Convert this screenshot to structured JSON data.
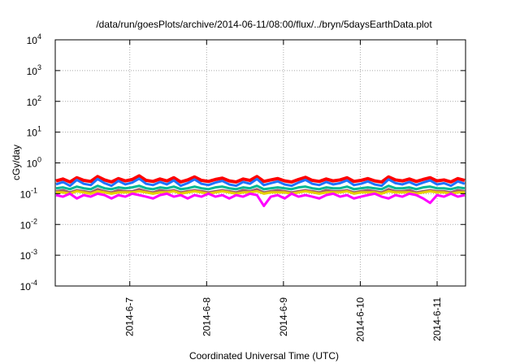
{
  "chart_data": {
    "type": "line",
    "title": "/data/run/goesPlots/archive/2014-06-11/08:00/flux/../bryn/5daysEarthData.plot",
    "xlabel": "Coordinated Universal Time (UTC)",
    "ylabel": "cGy/day",
    "yscale": "log",
    "ylim": [
      0.0001,
      10000
    ],
    "xlim_days_june": [
      6.03,
      11.37
    ],
    "grid": true,
    "legend": "none",
    "yticks": [
      {
        "value": 0.0001,
        "base": "10",
        "exp": "-4"
      },
      {
        "value": 0.001,
        "base": "10",
        "exp": "-3"
      },
      {
        "value": 0.01,
        "base": "10",
        "exp": "-2"
      },
      {
        "value": 0.1,
        "base": "10",
        "exp": "-1"
      },
      {
        "value": 1,
        "base": "10",
        "exp": "0"
      },
      {
        "value": 10,
        "base": "10",
        "exp": "1"
      },
      {
        "value": 100,
        "base": "10",
        "exp": "2"
      },
      {
        "value": 1000,
        "base": "10",
        "exp": "3"
      },
      {
        "value": 10000,
        "base": "10",
        "exp": "4"
      }
    ],
    "xticks": [
      {
        "day": 7,
        "label": "2014-6-7"
      },
      {
        "day": 8,
        "label": "2014-6-8"
      },
      {
        "day": 9,
        "label": "2014-6-9"
      },
      {
        "day": 10,
        "label": "2014-6-10"
      },
      {
        "day": 11,
        "label": "2014-6-11"
      }
    ],
    "series": [
      {
        "name": "red",
        "color": "#ff0000",
        "values": [
          0.26,
          0.3,
          0.24,
          0.33,
          0.27,
          0.25,
          0.36,
          0.28,
          0.24,
          0.31,
          0.26,
          0.29,
          0.38,
          0.27,
          0.25,
          0.3,
          0.26,
          0.33,
          0.24,
          0.28,
          0.35,
          0.27,
          0.25,
          0.29,
          0.32,
          0.26,
          0.24,
          0.3,
          0.27,
          0.36,
          0.25,
          0.28,
          0.31,
          0.26,
          0.24,
          0.29,
          0.34,
          0.27,
          0.25,
          0.3,
          0.26,
          0.28,
          0.33,
          0.25,
          0.27,
          0.31,
          0.26,
          0.24,
          0.35,
          0.28,
          0.26,
          0.3,
          0.25,
          0.29,
          0.33,
          0.26,
          0.28,
          0.24,
          0.31,
          0.27
        ]
      },
      {
        "name": "blue",
        "color": "#1e73ff",
        "values": [
          0.2,
          0.24,
          0.18,
          0.28,
          0.21,
          0.19,
          0.3,
          0.22,
          0.18,
          0.26,
          0.2,
          0.23,
          0.31,
          0.21,
          0.19,
          0.24,
          0.2,
          0.27,
          0.18,
          0.22,
          0.29,
          0.21,
          0.19,
          0.23,
          0.26,
          0.2,
          0.18,
          0.24,
          0.21,
          0.3,
          0.19,
          0.22,
          0.25,
          0.2,
          0.18,
          0.23,
          0.28,
          0.21,
          0.19,
          0.24,
          0.2,
          0.22,
          0.27,
          0.19,
          0.21,
          0.25,
          0.2,
          0.18,
          0.29,
          0.22,
          0.2,
          0.24,
          0.19,
          0.23,
          0.27,
          0.2,
          0.22,
          0.18,
          0.25,
          0.21
        ]
      },
      {
        "name": "teal",
        "color": "#00b894",
        "values": [
          0.15,
          0.16,
          0.14,
          0.17,
          0.15,
          0.14,
          0.18,
          0.15,
          0.14,
          0.16,
          0.15,
          0.16,
          0.18,
          0.15,
          0.14,
          0.16,
          0.15,
          0.17,
          0.14,
          0.15,
          0.17,
          0.15,
          0.14,
          0.16,
          0.17,
          0.15,
          0.14,
          0.16,
          0.15,
          0.18,
          0.14,
          0.15,
          0.16,
          0.15,
          0.14,
          0.16,
          0.17,
          0.15,
          0.14,
          0.16,
          0.15,
          0.15,
          0.17,
          0.14,
          0.15,
          0.16,
          0.15,
          0.14,
          0.18,
          0.15,
          0.15,
          0.16,
          0.14,
          0.16,
          0.17,
          0.15,
          0.15,
          0.14,
          0.16,
          0.15
        ]
      },
      {
        "name": "brown",
        "color": "#a0606a",
        "values": [
          0.12,
          0.13,
          0.11,
          0.13,
          0.12,
          0.11,
          0.14,
          0.12,
          0.11,
          0.13,
          0.12,
          0.12,
          0.14,
          0.12,
          0.11,
          0.13,
          0.12,
          0.13,
          0.11,
          0.12,
          0.13,
          0.12,
          0.11,
          0.12,
          0.13,
          0.12,
          0.11,
          0.13,
          0.12,
          0.14,
          0.11,
          0.12,
          0.13,
          0.12,
          0.11,
          0.12,
          0.13,
          0.12,
          0.11,
          0.13,
          0.12,
          0.12,
          0.13,
          0.11,
          0.12,
          0.13,
          0.12,
          0.11,
          0.14,
          0.12,
          0.12,
          0.13,
          0.11,
          0.12,
          0.13,
          0.12,
          0.12,
          0.11,
          0.13,
          0.12
        ]
      },
      {
        "name": "yellow",
        "color": "#e8d000",
        "values": [
          0.11,
          0.11,
          0.1,
          0.12,
          0.11,
          0.1,
          0.12,
          0.11,
          0.1,
          0.11,
          0.11,
          0.11,
          0.12,
          0.11,
          0.1,
          0.11,
          0.11,
          0.12,
          0.1,
          0.11,
          0.12,
          0.11,
          0.1,
          0.11,
          0.12,
          0.11,
          0.1,
          0.11,
          0.11,
          0.12,
          0.1,
          0.11,
          0.11,
          0.11,
          0.1,
          0.11,
          0.12,
          0.11,
          0.1,
          0.11,
          0.11,
          0.11,
          0.12,
          0.1,
          0.11,
          0.11,
          0.11,
          0.1,
          0.12,
          0.11,
          0.11,
          0.11,
          0.1,
          0.11,
          0.12,
          0.11,
          0.11,
          0.1,
          0.11,
          0.11
        ]
      },
      {
        "name": "magenta",
        "color": "#ff00ff",
        "values": [
          0.09,
          0.08,
          0.1,
          0.07,
          0.09,
          0.08,
          0.1,
          0.09,
          0.07,
          0.09,
          0.08,
          0.1,
          0.09,
          0.08,
          0.07,
          0.09,
          0.1,
          0.08,
          0.09,
          0.07,
          0.09,
          0.08,
          0.1,
          0.08,
          0.09,
          0.07,
          0.09,
          0.08,
          0.1,
          0.09,
          0.04,
          0.08,
          0.09,
          0.07,
          0.1,
          0.08,
          0.09,
          0.08,
          0.07,
          0.09,
          0.1,
          0.08,
          0.09,
          0.07,
          0.08,
          0.09,
          0.1,
          0.08,
          0.07,
          0.09,
          0.08,
          0.1,
          0.09,
          0.07,
          0.05,
          0.09,
          0.08,
          0.1,
          0.08,
          0.09
        ]
      }
    ]
  }
}
